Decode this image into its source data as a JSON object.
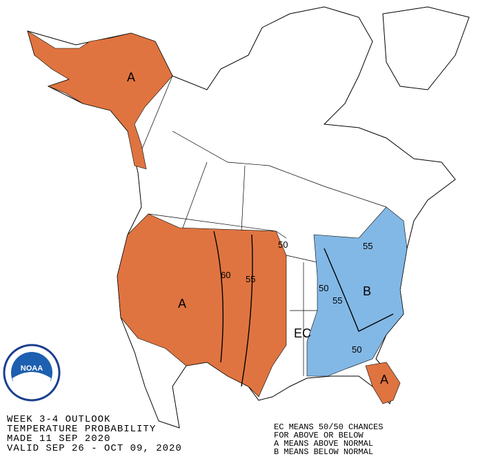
{
  "logo": "NOAA",
  "regions": [
    "A",
    "A",
    "A",
    "B",
    "EC"
  ],
  "contours": [
    "60",
    "55",
    "50",
    "55",
    "50",
    "55",
    "50"
  ],
  "footer": {
    "left": [
      "WEEK 3-4 OUTLOOK",
      "TEMPERATURE PROBABILITY",
      "MADE  11 SEP 2020",
      "VALID  SEP 26 - OCT 09, 2020"
    ],
    "right": [
      "EC MEANS 50/50 CHANCES",
      "FOR ABOVE OR BELOW",
      "A MEANS ABOVE NORMAL",
      "B MEANS BELOW NORMAL"
    ]
  }
}
